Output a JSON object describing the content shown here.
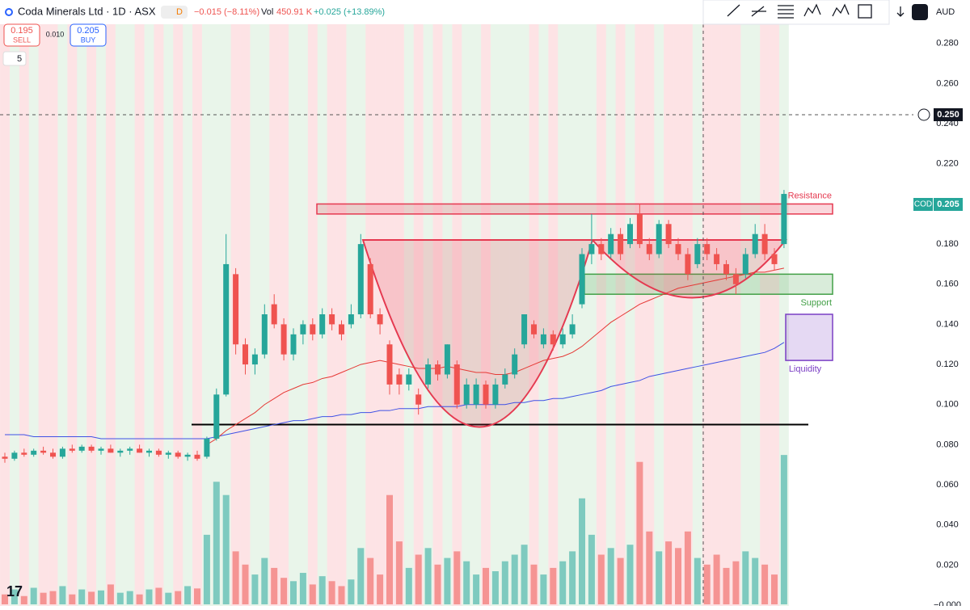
{
  "header": {
    "symbol": "Coda Minerals Ltd · 1D · ASX",
    "badge": "D",
    "change": "−0.015 (−8.11%)",
    "vol_label": "Vol",
    "vol": "450.91 K",
    "vol_change": "+0.025 (+13.89%)"
  },
  "trade": {
    "sell_price": "0.195",
    "sell": "SELL",
    "spread": "0.010",
    "buy_price": "0.205",
    "buy": "BUY"
  },
  "indicators": "5",
  "currency": "AUD",
  "price_tag": {
    "symbol": "COD",
    "value": "0.205"
  },
  "crosshair": "0.250",
  "chart_data": {
    "type": "candlestick",
    "ylim": [
      -0.0004,
      0.2896
    ],
    "yticks": [
      {
        "value": 0,
        "label": "−0.000"
      },
      {
        "value": 0.02,
        "label": "0.020"
      },
      {
        "value": 0.04,
        "label": "0.040"
      },
      {
        "value": 0.06,
        "label": "0.060"
      },
      {
        "value": 0.08,
        "label": "0.080"
      },
      {
        "value": 0.1,
        "label": "0.100"
      },
      {
        "value": 0.12,
        "label": "0.120"
      },
      {
        "value": 0.14,
        "label": "0.140"
      },
      {
        "value": 0.16,
        "label": "0.160"
      },
      {
        "value": 0.18,
        "label": "0.180"
      },
      {
        "value": 0.2,
        "label": "0.200"
      },
      {
        "value": 0.22,
        "label": "0.220"
      },
      {
        "value": 0.24,
        "label": "0.240"
      },
      {
        "value": 0.26,
        "label": "0.260"
      },
      {
        "value": 0.28,
        "label": "0.280"
      }
    ],
    "colors": {
      "up": "#26a69a",
      "down": "#ef5350",
      "ma_fast": "#e53935",
      "ma_slow": "#3f51e5"
    },
    "candles": [
      [
        0.074,
        0.076,
        0.071,
        0.073
      ],
      [
        0.073,
        0.077,
        0.072,
        0.076
      ],
      [
        0.076,
        0.078,
        0.074,
        0.075
      ],
      [
        0.075,
        0.078,
        0.074,
        0.077
      ],
      [
        0.077,
        0.079,
        0.075,
        0.076
      ],
      [
        0.076,
        0.078,
        0.073,
        0.074
      ],
      [
        0.074,
        0.079,
        0.073,
        0.078
      ],
      [
        0.078,
        0.08,
        0.076,
        0.077
      ],
      [
        0.077,
        0.08,
        0.076,
        0.079
      ],
      [
        0.079,
        0.08,
        0.076,
        0.077
      ],
      [
        0.077,
        0.079,
        0.075,
        0.078
      ],
      [
        0.078,
        0.08,
        0.076,
        0.076
      ],
      [
        0.076,
        0.078,
        0.074,
        0.077
      ],
      [
        0.077,
        0.079,
        0.075,
        0.078
      ],
      [
        0.078,
        0.08,
        0.076,
        0.076
      ],
      [
        0.076,
        0.078,
        0.074,
        0.077
      ],
      [
        0.077,
        0.078,
        0.074,
        0.075
      ],
      [
        0.075,
        0.077,
        0.073,
        0.076
      ],
      [
        0.076,
        0.077,
        0.073,
        0.074
      ],
      [
        0.074,
        0.076,
        0.072,
        0.075
      ],
      [
        0.075,
        0.077,
        0.072,
        0.073
      ],
      [
        0.074,
        0.084,
        0.073,
        0.083
      ],
      [
        0.083,
        0.108,
        0.082,
        0.105
      ],
      [
        0.105,
        0.185,
        0.104,
        0.17
      ],
      [
        0.165,
        0.168,
        0.125,
        0.13
      ],
      [
        0.13,
        0.133,
        0.115,
        0.12
      ],
      [
        0.12,
        0.128,
        0.115,
        0.125
      ],
      [
        0.125,
        0.15,
        0.123,
        0.145
      ],
      [
        0.15,
        0.155,
        0.138,
        0.14
      ],
      [
        0.14,
        0.143,
        0.122,
        0.125
      ],
      [
        0.125,
        0.138,
        0.122,
        0.135
      ],
      [
        0.135,
        0.142,
        0.13,
        0.14
      ],
      [
        0.14,
        0.143,
        0.132,
        0.135
      ],
      [
        0.135,
        0.148,
        0.133,
        0.145
      ],
      [
        0.145,
        0.148,
        0.137,
        0.14
      ],
      [
        0.14,
        0.142,
        0.132,
        0.135
      ],
      [
        0.14,
        0.15,
        0.138,
        0.145
      ],
      [
        0.145,
        0.185,
        0.143,
        0.18
      ],
      [
        0.17,
        0.173,
        0.143,
        0.145
      ],
      [
        0.145,
        0.148,
        0.135,
        0.14
      ],
      [
        0.13,
        0.132,
        0.105,
        0.11
      ],
      [
        0.115,
        0.118,
        0.105,
        0.11
      ],
      [
        0.11,
        0.118,
        0.107,
        0.115
      ],
      [
        0.105,
        0.108,
        0.095,
        0.1
      ],
      [
        0.11,
        0.123,
        0.108,
        0.12
      ],
      [
        0.12,
        0.122,
        0.112,
        0.115
      ],
      [
        0.115,
        0.13,
        0.113,
        0.13
      ],
      [
        0.12,
        0.122,
        0.098,
        0.1
      ],
      [
        0.1,
        0.113,
        0.098,
        0.11
      ],
      [
        0.1,
        0.113,
        0.098,
        0.11
      ],
      [
        0.11,
        0.112,
        0.098,
        0.1
      ],
      [
        0.1,
        0.113,
        0.098,
        0.11
      ],
      [
        0.11,
        0.118,
        0.108,
        0.115
      ],
      [
        0.115,
        0.128,
        0.113,
        0.125
      ],
      [
        0.13,
        0.145,
        0.128,
        0.145
      ],
      [
        0.14,
        0.142,
        0.133,
        0.135
      ],
      [
        0.13,
        0.138,
        0.128,
        0.135
      ],
      [
        0.135,
        0.137,
        0.127,
        0.13
      ],
      [
        0.13,
        0.138,
        0.128,
        0.135
      ],
      [
        0.135,
        0.145,
        0.133,
        0.14
      ],
      [
        0.15,
        0.178,
        0.148,
        0.175
      ],
      [
        0.175,
        0.195,
        0.17,
        0.18
      ],
      [
        0.18,
        0.183,
        0.172,
        0.175
      ],
      [
        0.175,
        0.188,
        0.173,
        0.185
      ],
      [
        0.185,
        0.188,
        0.172,
        0.175
      ],
      [
        0.18,
        0.193,
        0.178,
        0.19
      ],
      [
        0.195,
        0.2,
        0.178,
        0.18
      ],
      [
        0.18,
        0.183,
        0.172,
        0.175
      ],
      [
        0.175,
        0.192,
        0.173,
        0.19
      ],
      [
        0.19,
        0.192,
        0.178,
        0.18
      ],
      [
        0.18,
        0.183,
        0.172,
        0.175
      ],
      [
        0.175,
        0.178,
        0.162,
        0.165
      ],
      [
        0.17,
        0.183,
        0.168,
        0.18
      ],
      [
        0.18,
        0.183,
        0.172,
        0.175
      ],
      [
        0.175,
        0.178,
        0.167,
        0.17
      ],
      [
        0.17,
        0.172,
        0.162,
        0.165
      ],
      [
        0.165,
        0.168,
        0.155,
        0.16
      ],
      [
        0.165,
        0.178,
        0.163,
        0.175
      ],
      [
        0.175,
        0.19,
        0.173,
        0.185
      ],
      [
        0.185,
        0.19,
        0.172,
        0.175
      ],
      [
        0.175,
        0.178,
        0.167,
        0.17
      ],
      [
        0.18,
        0.207,
        0.178,
        0.205
      ]
    ],
    "volume": [
      30,
      45,
      25,
      50,
      35,
      40,
      55,
      30,
      45,
      38,
      42,
      60,
      35,
      40,
      30,
      45,
      50,
      35,
      40,
      55,
      48,
      210,
      370,
      330,
      160,
      120,
      90,
      140,
      110,
      80,
      70,
      95,
      60,
      85,
      70,
      55,
      75,
      170,
      140,
      90,
      330,
      190,
      110,
      150,
      170,
      120,
      140,
      160,
      130,
      90,
      110,
      100,
      130,
      150,
      180,
      120,
      90,
      110,
      130,
      160,
      320,
      210,
      150,
      170,
      140,
      180,
      430,
      220,
      160,
      190,
      170,
      220,
      140,
      120,
      150,
      110,
      130,
      160,
      140,
      120,
      90,
      450.91
    ],
    "ma_fast": [
      null,
      null,
      null,
      null,
      null,
      null,
      null,
      null,
      null,
      null,
      null,
      null,
      null,
      null,
      null,
      null,
      null,
      null,
      null,
      null,
      null,
      0.08,
      0.083,
      0.087,
      0.09,
      0.093,
      0.096,
      0.1,
      0.103,
      0.106,
      0.108,
      0.11,
      0.111,
      0.113,
      0.114,
      0.116,
      0.118,
      0.12,
      0.121,
      0.122,
      0.121,
      0.12,
      0.119,
      0.118,
      0.118,
      0.118,
      0.119,
      0.118,
      0.117,
      0.116,
      0.116,
      0.115,
      0.115,
      0.116,
      0.118,
      0.12,
      0.122,
      0.123,
      0.124,
      0.126,
      0.129,
      0.133,
      0.137,
      0.141,
      0.144,
      0.147,
      0.15,
      0.152,
      0.154,
      0.156,
      0.158,
      0.159,
      0.16,
      0.161,
      0.162,
      0.163,
      0.164,
      0.165,
      0.166,
      0.166,
      0.167,
      0.168
    ],
    "ma_slow": [
      0.085,
      0.085,
      0.085,
      0.084,
      0.084,
      0.084,
      0.084,
      0.084,
      0.084,
      0.084,
      0.083,
      0.083,
      0.083,
      0.083,
      0.083,
      0.083,
      0.083,
      0.083,
      0.083,
      0.083,
      0.083,
      0.083,
      0.084,
      0.085,
      0.086,
      0.087,
      0.088,
      0.089,
      0.09,
      0.091,
      0.092,
      0.092,
      0.093,
      0.094,
      0.094,
      0.095,
      0.095,
      0.096,
      0.096,
      0.097,
      0.097,
      0.098,
      0.098,
      0.098,
      0.099,
      0.099,
      0.099,
      0.099,
      0.1,
      0.1,
      0.1,
      0.1,
      0.1,
      0.101,
      0.101,
      0.102,
      0.102,
      0.103,
      0.103,
      0.104,
      0.105,
      0.106,
      0.107,
      0.109,
      0.11,
      0.111,
      0.112,
      0.114,
      0.115,
      0.116,
      0.117,
      0.118,
      0.119,
      0.12,
      0.121,
      0.122,
      0.123,
      0.124,
      0.125,
      0.126,
      0.128,
      0.131
    ],
    "levels": [
      {
        "label": "Resistance",
        "range": [
          0.195,
          0.2
        ],
        "color": "#e53950"
      },
      {
        "label": "Support",
        "range": [
          0.155,
          0.165
        ],
        "color": "#43a047"
      },
      {
        "label": "Liquidity",
        "range": [
          0.122,
          0.145
        ],
        "color": "#7b3fc4"
      }
    ],
    "neckline": 0.09
  }
}
